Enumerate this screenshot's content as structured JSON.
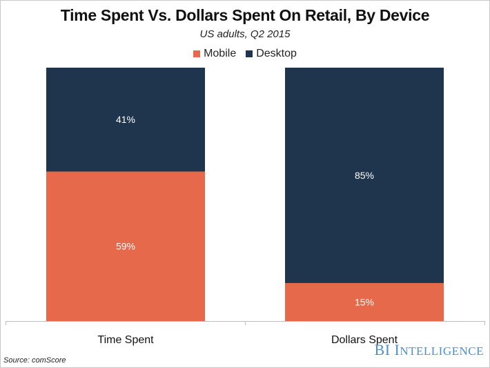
{
  "chart_data": {
    "type": "bar",
    "stacked": true,
    "title": "Time Spent Vs. Dollars Spent On Retail, By Device",
    "subtitle": "US adults, Q2 2015",
    "categories": [
      "Time Spent",
      "Dollars Spent"
    ],
    "series": [
      {
        "name": "Mobile",
        "values": [
          59,
          15
        ],
        "labels": [
          "59%",
          "15%"
        ],
        "color": "#E5694A"
      },
      {
        "name": "Desktop",
        "values": [
          41,
          85
        ],
        "labels": [
          "41%",
          "85%"
        ],
        "color": "#1F354D"
      }
    ],
    "ylim": [
      0,
      100
    ],
    "grid": false,
    "legend": "top"
  },
  "source": "Source: comScore",
  "logo": "BI Intelligence"
}
